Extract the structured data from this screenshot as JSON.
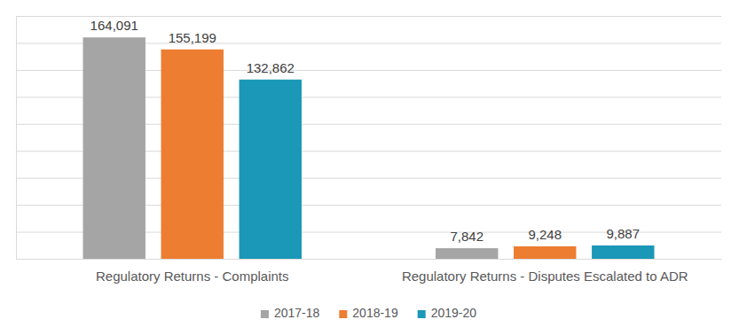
{
  "chart_data": {
    "type": "bar",
    "categories": [
      "Regulatory Returns - Complaints",
      "Regulatory Returns - Disputes Escalated to ADR"
    ],
    "series": [
      {
        "name": "2017-18",
        "color": "#a5a5a5",
        "values": [
          164091,
          7842
        ],
        "value_labels": [
          "164,091",
          "7,842"
        ]
      },
      {
        "name": "2018-19",
        "color": "#ed7d31",
        "values": [
          155199,
          9248
        ],
        "value_labels": [
          "155,199",
          "9,248"
        ]
      },
      {
        "name": "2019-20",
        "color": "#1b98b8",
        "values": [
          132862,
          9887
        ],
        "value_labels": [
          "132,862",
          "9,887"
        ]
      }
    ],
    "ylim": [
      0,
      180000
    ],
    "yticks": [
      0,
      20000,
      40000,
      60000,
      80000,
      100000,
      120000,
      140000,
      160000,
      180000
    ],
    "grid": true,
    "legend": "bottom",
    "data_labels": true,
    "tick_labels": "x"
  }
}
